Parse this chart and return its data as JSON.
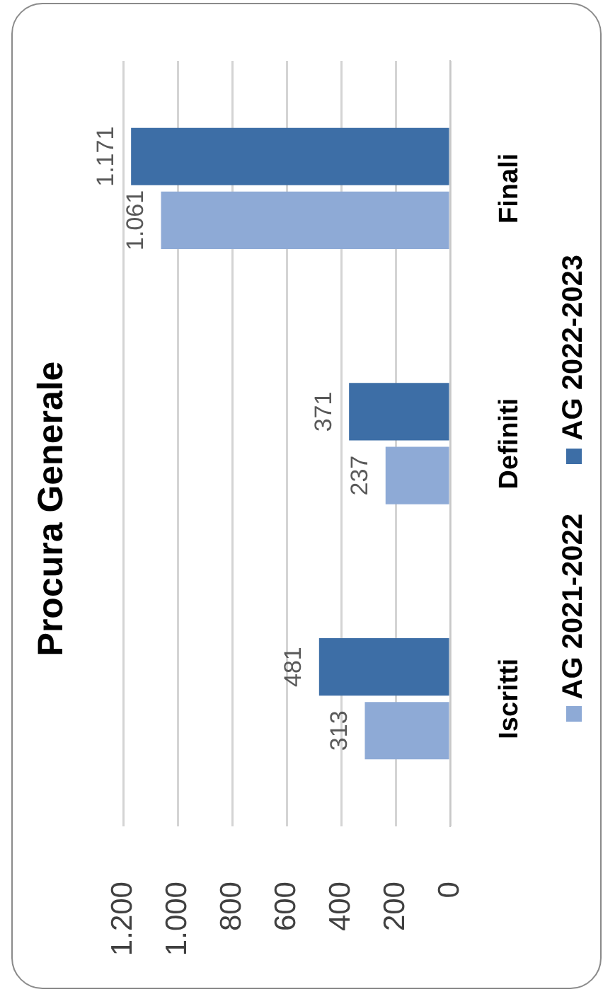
{
  "chart_data": {
    "type": "bar",
    "orientation": "horizontal",
    "title": "Procura Generale",
    "categories": [
      "Finali",
      "Definiti",
      "Iscritti"
    ],
    "series": [
      {
        "name": "AG 2021-2022",
        "color": "#8eaad6",
        "values": [
          1061,
          237,
          313
        ],
        "value_labels": [
          "1.061",
          "237",
          "313"
        ]
      },
      {
        "name": "AG 2022-2023",
        "color": "#3d6ea6",
        "values": [
          1171,
          371,
          481
        ],
        "value_labels": [
          "1.171",
          "371",
          "481"
        ]
      }
    ],
    "xlim": [
      1200,
      0
    ],
    "xticks": [
      {
        "value": 1200,
        "label": "1.200"
      },
      {
        "value": 1000,
        "label": "1.000"
      },
      800,
      600,
      400,
      200,
      0
    ],
    "grid": "x",
    "legend": "right"
  }
}
